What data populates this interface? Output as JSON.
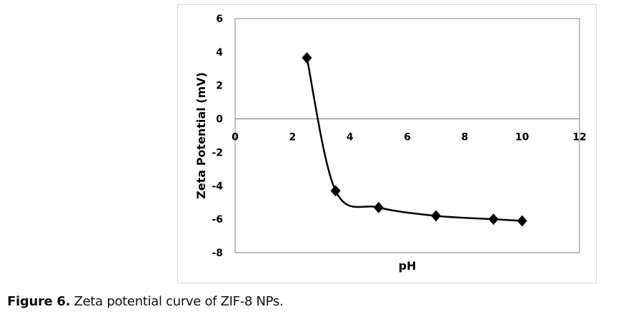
{
  "chart_data": {
    "type": "line",
    "title": "",
    "xlabel": "pH",
    "ylabel": "Zeta Potential (mV)",
    "xlim": [
      0,
      12
    ],
    "ylim": [
      -8,
      6
    ],
    "xticks": [
      0,
      2,
      4,
      6,
      8,
      10,
      12
    ],
    "yticks": [
      6,
      4,
      2,
      0,
      -2,
      -4,
      -6,
      -8
    ],
    "grid": false,
    "legend": "none",
    "series": [
      {
        "name": "Zeta potential",
        "marker": "diamond",
        "smooth": true,
        "color": "#000000",
        "x": [
          2.5,
          3.5,
          5,
          7,
          9,
          10
        ],
        "y": [
          3.65,
          -4.3,
          -5.3,
          -5.8,
          -6.0,
          -6.1
        ]
      }
    ]
  },
  "caption": {
    "label": "Figure 6.",
    "text": " Zeta potential curve of ZIF-8 NPs."
  }
}
